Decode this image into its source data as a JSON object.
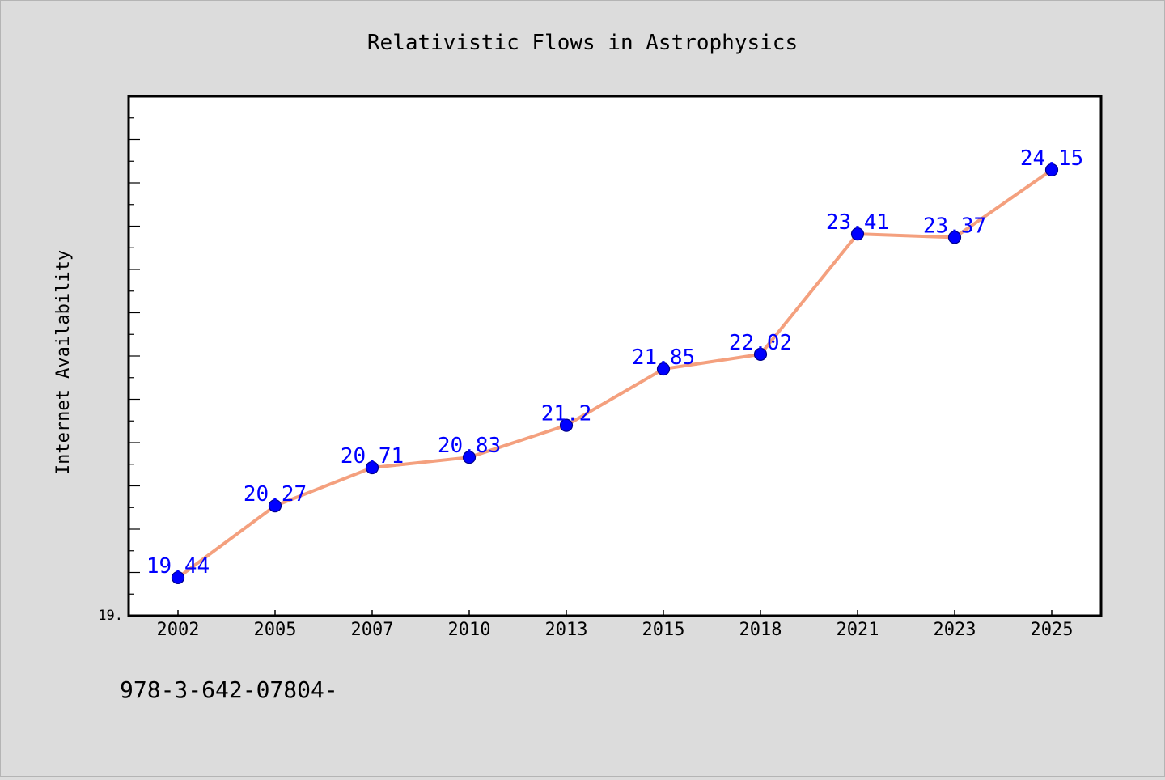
{
  "chart_data": {
    "type": "line",
    "title": "Relativistic Flows in Astrophysics",
    "xlabel": "",
    "ylabel": "Internet Availability",
    "categories": [
      "2002",
      "2005",
      "2007",
      "2010",
      "2013",
      "2015",
      "2018",
      "2021",
      "2023",
      "2025"
    ],
    "series": [
      {
        "values": [
          19.44,
          20.27,
          20.71,
          20.83,
          21.2,
          21.85,
          22.02,
          23.41,
          23.37,
          24.15
        ]
      }
    ],
    "data_labels": [
      "19.44",
      "20.27",
      "20.71",
      "20.83",
      "21.2",
      "21.85",
      "22.02",
      "23.41",
      "23.37",
      "24.15"
    ],
    "ylim": [
      19.0,
      25.0
    ],
    "y_tick_label": "19.",
    "grid": false,
    "legend": "none",
    "colors": {
      "line": "#f4a07e",
      "marker": "#0000ff",
      "label": "#0000ff",
      "background": "#dcdcdc",
      "plot_background": "#ffffff"
    }
  },
  "footer": {
    "code": "978-3-642-07804-"
  }
}
